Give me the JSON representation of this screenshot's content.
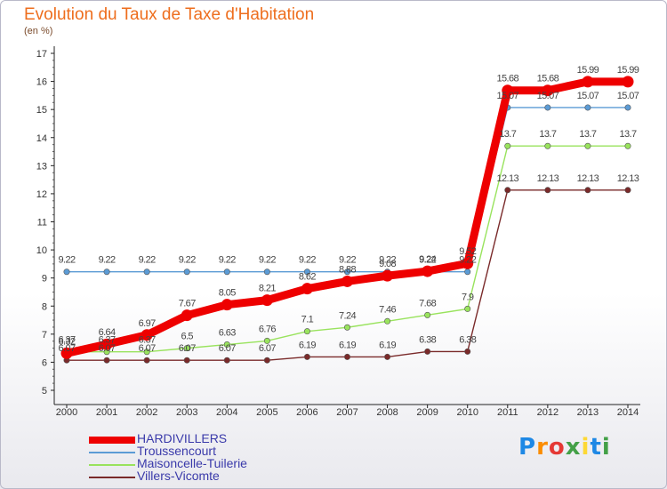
{
  "header": {
    "title": "Evolution du Taux de Taxe d'Habitation",
    "subtitle": "(en %)"
  },
  "logo": {
    "text": "Proxiti",
    "colors": [
      "#1e88e5",
      "#fb8c00",
      "#e53935",
      "#43a047",
      "#fdd835",
      "#1e88e5",
      "#43a047"
    ]
  },
  "chart_data": {
    "type": "line",
    "title": "Evolution du Taux de Taxe d'Habitation",
    "subtitle": "(en %)",
    "ylim": [
      5,
      17
    ],
    "yticks": [
      5,
      6,
      7,
      8,
      9,
      10,
      11,
      12,
      13,
      14,
      15,
      16,
      17
    ],
    "grid": false,
    "legend_position": "bottom-left",
    "x": [
      "2000",
      "2001",
      "2002",
      "2003",
      "2004",
      "2005",
      "2006",
      "2007",
      "2008",
      "2009",
      "2010",
      "2011",
      "2012",
      "2013",
      "2014"
    ],
    "series": [
      {
        "name": "HARDIVILLERS",
        "color": "#ee0000",
        "values": [
          6.32,
          6.64,
          6.97,
          7.67,
          8.05,
          8.21,
          8.62,
          8.88,
          9.08,
          9.24,
          9.52,
          15.68,
          15.68,
          15.99,
          15.99
        ],
        "labels": [
          "6.32",
          "6.64",
          "6.97",
          "7.67",
          "8.05",
          "8.21",
          "8.62",
          "8.88",
          "9.08",
          "9.24",
          "9.52",
          "15.68",
          "15.68",
          "15.99",
          "15.99"
        ]
      },
      {
        "name": "Troussencourt",
        "color": "#5b9bd5",
        "values": [
          9.22,
          9.22,
          9.22,
          9.22,
          9.22,
          9.22,
          9.22,
          9.22,
          9.22,
          9.22,
          9.22,
          15.07,
          15.07,
          15.07,
          15.07
        ],
        "labels": [
          "9.22",
          "9.22",
          "9.22",
          "9.22",
          "9.22",
          "9.22",
          "9.22",
          "9.22",
          "9.22",
          "9.22",
          "9.22",
          "15.07",
          "15.07",
          "15.07",
          "15.07"
        ]
      },
      {
        "name": "Maisoncelle-Tuilerie",
        "color": "#99e35d",
        "values": [
          6.37,
          6.37,
          6.37,
          6.5,
          6.63,
          6.76,
          7.1,
          7.24,
          7.46,
          7.68,
          7.9,
          13.7,
          13.7,
          13.7,
          13.7
        ],
        "labels": [
          "6.37",
          "6.37",
          "6.37",
          "6.5",
          "6.63",
          "6.76",
          "7.1",
          "7.24",
          "7.46",
          "7.68",
          "7.9",
          "13.7",
          "13.7",
          "13.7",
          "13.7"
        ]
      },
      {
        "name": "Villers-Vicomte",
        "color": "#7a2a2a",
        "values": [
          6.07,
          6.07,
          6.07,
          6.07,
          6.07,
          6.07,
          6.19,
          6.19,
          6.19,
          6.38,
          6.38,
          12.13,
          12.13,
          12.13,
          12.13
        ],
        "labels": [
          "6.07",
          "6.07",
          "6.07",
          "6.07",
          "6.07",
          "6.07",
          "6.19",
          "6.19",
          "6.19",
          "6.38",
          "6.38",
          "12.13",
          "12.13",
          "12.13",
          "12.13"
        ]
      }
    ]
  }
}
